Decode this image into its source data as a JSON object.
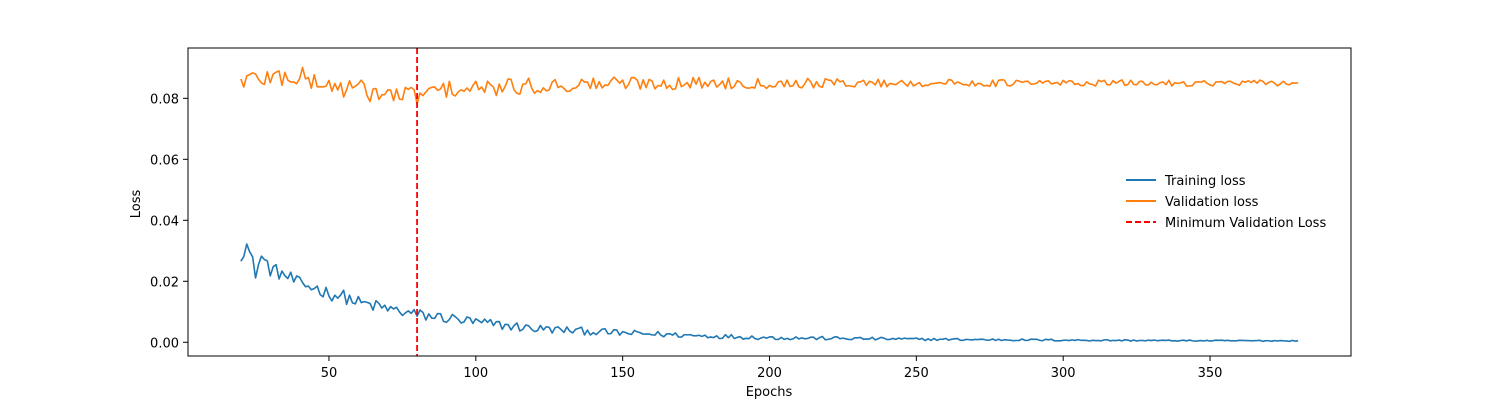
{
  "chart_data": {
    "type": "line",
    "title": "",
    "xlabel": "Epochs",
    "ylabel": "Loss",
    "xlim": [
      2,
      398
    ],
    "ylim": [
      -0.0045,
      0.0965
    ],
    "x_ticks": [
      50,
      100,
      150,
      200,
      250,
      300,
      350
    ],
    "y_ticks": [
      0.0,
      0.02,
      0.04,
      0.06,
      0.08
    ],
    "y_tick_labels": [
      "0.00",
      "0.02",
      "0.04",
      "0.06",
      "0.08"
    ],
    "x_tick_labels": [
      "50",
      "100",
      "150",
      "200",
      "250",
      "300",
      "350"
    ],
    "grid": false,
    "legend_position": "center-right",
    "x_start": 20,
    "x_end": 380,
    "series": [
      {
        "name": "Training loss",
        "color": "#1f77b4",
        "style": "solid",
        "keypoints": [
          [
            20,
            0.029
          ],
          [
            22,
            0.032
          ],
          [
            25,
            0.023
          ],
          [
            27,
            0.028
          ],
          [
            30,
            0.024
          ],
          [
            35,
            0.022
          ],
          [
            40,
            0.019
          ],
          [
            45,
            0.018
          ],
          [
            50,
            0.016
          ],
          [
            55,
            0.015
          ],
          [
            60,
            0.013
          ],
          [
            65,
            0.012
          ],
          [
            70,
            0.011
          ],
          [
            75,
            0.01
          ],
          [
            80,
            0.009
          ],
          [
            90,
            0.008
          ],
          [
            100,
            0.0065
          ],
          [
            110,
            0.0055
          ],
          [
            120,
            0.0045
          ],
          [
            130,
            0.004
          ],
          [
            150,
            0.003
          ],
          [
            175,
            0.0022
          ],
          [
            200,
            0.0015
          ],
          [
            250,
            0.001
          ],
          [
            300,
            0.0007
          ],
          [
            350,
            0.0005
          ],
          [
            380,
            0.0005
          ]
        ],
        "noise": [
          0.0025,
          0.0022,
          0.0018,
          0.0012,
          0.0008,
          0.0006,
          0.0004,
          0.0003,
          0.0002,
          0.0002
        ]
      },
      {
        "name": "Validation loss",
        "color": "#ff7f0e",
        "style": "solid",
        "keypoints": [
          [
            20,
            0.086
          ],
          [
            30,
            0.087
          ],
          [
            40,
            0.087
          ],
          [
            50,
            0.084
          ],
          [
            60,
            0.083
          ],
          [
            70,
            0.081
          ],
          [
            80,
            0.081
          ],
          [
            90,
            0.083
          ],
          [
            100,
            0.083
          ],
          [
            120,
            0.084
          ],
          [
            150,
            0.085
          ],
          [
            200,
            0.085
          ],
          [
            250,
            0.085
          ],
          [
            300,
            0.085
          ],
          [
            350,
            0.085
          ],
          [
            380,
            0.085
          ]
        ],
        "noise": [
          0.0035,
          0.0035,
          0.003,
          0.0025,
          0.002,
          0.0015,
          0.0012,
          0.0011,
          0.001,
          0.001
        ]
      }
    ],
    "vlines": [
      {
        "name": "Minimum Validation Loss",
        "x": 80,
        "color": "#ff0000",
        "style": "dashed"
      }
    ]
  }
}
